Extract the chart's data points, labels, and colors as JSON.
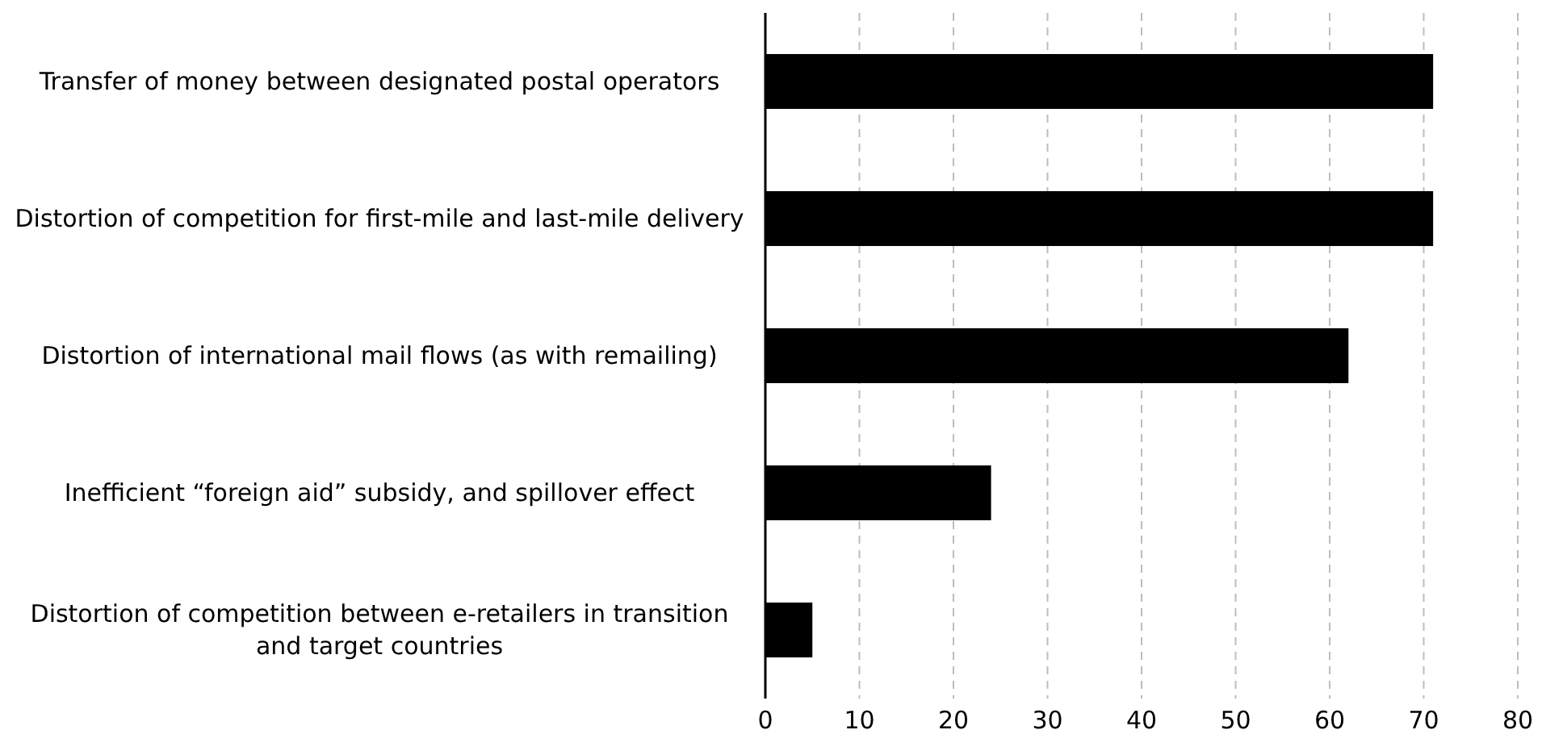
{
  "chart_data": {
    "type": "bar",
    "orientation": "horizontal",
    "categories": [
      "Transfer of money between designated postal operators",
      "Distortion of competition for first-mile and last-mile delivery",
      "Distortion of international mail flows (as with remailing)",
      "Inefficient “foreign aid” subsidy, and spillover effect",
      "Distortion of competition between e-retailers in transition and target countries"
    ],
    "values": [
      71,
      71,
      62,
      24,
      5
    ],
    "color": "#000000",
    "xlim": [
      0,
      80
    ],
    "xticks": [
      0,
      10,
      20,
      30,
      40,
      50,
      60,
      70,
      80
    ],
    "grid": "x"
  }
}
